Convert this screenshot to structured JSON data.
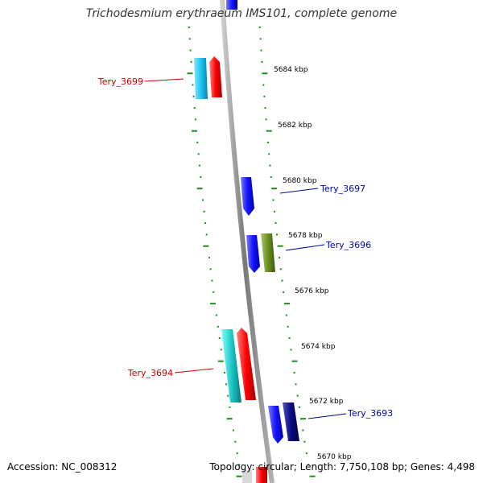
{
  "title": "Trichodesmium erythraeum IMS101, complete genome",
  "footer": {
    "accession": "Accession: NC_008312",
    "topology": "Topology: circular; Length: 7,750,108 bp; Genes: 4,498"
  },
  "colors": {
    "backbone": "#8c8c8c",
    "ticks": "#1e8a1e",
    "label_left": "#cc0000",
    "label_right": "#0000aa",
    "gene_cyan": "#1ec8f0",
    "gene_red": "#ff0000",
    "gene_blue": "#1414ff",
    "gene_olive": "#6b8e23",
    "gene_teal": "#20c8c8",
    "gene_navy": "#0a0a80"
  },
  "scale": {
    "unit": "kbp",
    "labels": [
      "5684 kbp",
      "5682 kbp",
      "5680 kbp",
      "5678 kbp",
      "5676 kbp",
      "5674 kbp",
      "5672 kbp",
      "5670 kbp"
    ]
  },
  "genes": [
    {
      "label": "Tery_3699",
      "side": "left",
      "color": "gene_red"
    },
    {
      "label": "Tery_3697",
      "side": "right",
      "color": "gene_blue"
    },
    {
      "label": "Tery_3696",
      "side": "right",
      "color": "gene_olive"
    },
    {
      "label": "Tery_3694",
      "side": "left",
      "color": "gene_red"
    },
    {
      "label": "Tery_3693",
      "side": "right",
      "color": "gene_navy"
    }
  ]
}
